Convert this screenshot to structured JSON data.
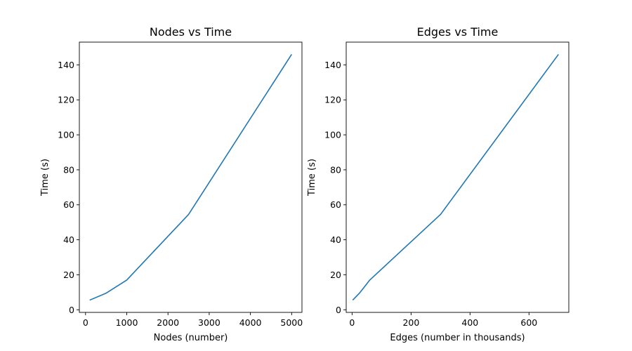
{
  "chart_data": [
    {
      "type": "line",
      "title": "Nodes vs Time",
      "xlabel": "Nodes (number)",
      "ylabel": "Time (s)",
      "xlim": [
        -150,
        5250
      ],
      "ylim": [
        -1.5,
        153
      ],
      "xticks": [
        0,
        1000,
        2000,
        3000,
        4000,
        5000
      ],
      "yticks": [
        0,
        20,
        40,
        60,
        80,
        100,
        120,
        140
      ],
      "grid": false,
      "series": [
        {
          "x": [
            100,
            500,
            1000,
            2500,
            5000
          ],
          "y": [
            5.5,
            9.5,
            17,
            54.5,
            146
          ],
          "color": "#1f77b4"
        }
      ]
    },
    {
      "type": "line",
      "title": "Edges vs Time",
      "xlabel": "Edges (number in thousands)",
      "ylabel": "Time (s)",
      "xlim": [
        -20,
        735
      ],
      "ylim": [
        -1.5,
        153
      ],
      "xticks": [
        0,
        200,
        400,
        600
      ],
      "yticks": [
        0,
        20,
        40,
        60,
        80,
        100,
        120,
        140
      ],
      "grid": false,
      "series": [
        {
          "x": [
            2,
            25,
            60,
            300,
            700
          ],
          "y": [
            5.5,
            9.5,
            17,
            54.5,
            146
          ],
          "color": "#1f77b4"
        }
      ]
    }
  ]
}
